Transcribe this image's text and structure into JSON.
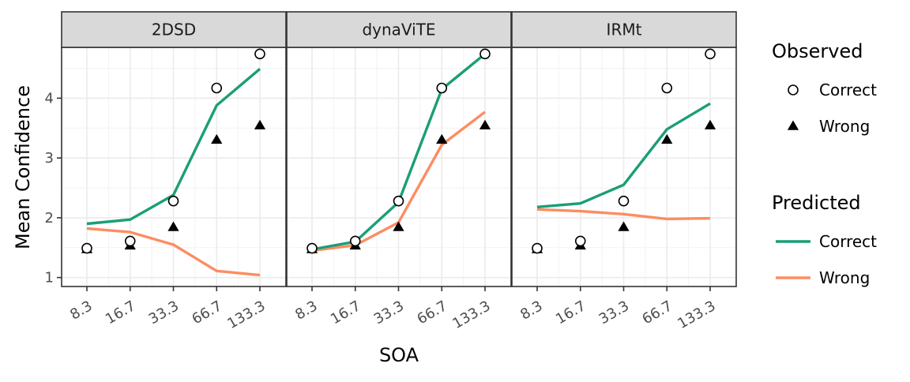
{
  "chart_data": {
    "type": "line",
    "xlabel": "SOA",
    "ylabel": "Mean Confidence",
    "x_categories": [
      "8.3",
      "16.7",
      "33.3",
      "66.7",
      "133.3"
    ],
    "y_ticks": [
      1,
      2,
      3,
      4
    ],
    "ylim": [
      0.85,
      4.85
    ],
    "grid": true,
    "legend_position": "right",
    "colors": {
      "correct": "#1b9e77",
      "wrong": "#fc8d62",
      "observed": "#000000"
    },
    "legend": {
      "observed": {
        "title": "Observed",
        "items": [
          {
            "label": "Correct",
            "shape": "open-circle"
          },
          {
            "label": "Wrong",
            "shape": "filled-triangle"
          }
        ]
      },
      "predicted": {
        "title": "Predicted",
        "items": [
          {
            "label": "Correct",
            "color": "#1b9e77"
          },
          {
            "label": "Wrong",
            "color": "#fc8d62"
          }
        ]
      }
    },
    "panels": [
      {
        "title": "2DSD",
        "observed_correct": [
          1.49,
          1.61,
          2.28,
          4.17,
          4.74
        ],
        "observed_wrong": [
          1.47,
          1.53,
          1.84,
          3.3,
          3.54
        ],
        "predicted_correct": [
          1.9,
          1.97,
          2.38,
          3.88,
          4.49
        ],
        "predicted_wrong": [
          1.82,
          1.76,
          1.55,
          1.11,
          1.04
        ]
      },
      {
        "title": "dynaViTE",
        "observed_correct": [
          1.49,
          1.61,
          2.28,
          4.17,
          4.74
        ],
        "observed_wrong": [
          1.47,
          1.53,
          1.84,
          3.3,
          3.54
        ],
        "predicted_correct": [
          1.47,
          1.6,
          2.26,
          4.15,
          4.74
        ],
        "predicted_wrong": [
          1.45,
          1.54,
          1.92,
          3.22,
          3.77
        ]
      },
      {
        "title": "IRMt",
        "observed_correct": [
          1.49,
          1.61,
          2.28,
          4.17,
          4.74
        ],
        "observed_wrong": [
          1.47,
          1.53,
          1.84,
          3.3,
          3.54
        ],
        "predicted_correct": [
          2.18,
          2.24,
          2.55,
          3.48,
          3.91
        ],
        "predicted_wrong": [
          2.14,
          2.11,
          2.06,
          1.98,
          1.99
        ]
      }
    ]
  }
}
